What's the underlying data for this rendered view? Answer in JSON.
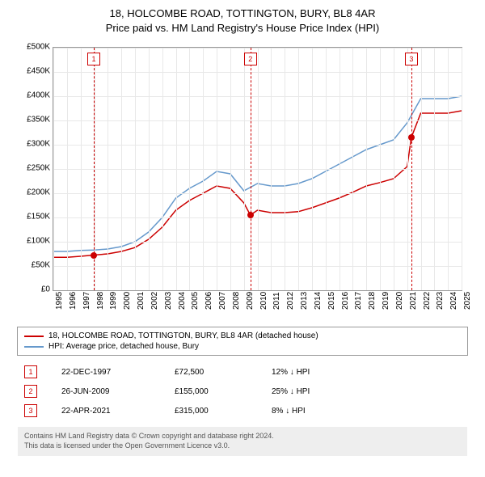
{
  "chart": {
    "title_line1": "18, HOLCOMBE ROAD, TOTTINGTON, BURY, BL8 4AR",
    "title_line2": "Price paid vs. HM Land Registry's House Price Index (HPI)",
    "type": "line",
    "background_color": "#ffffff",
    "grid_color": "#e8e8e8",
    "border_color": "#999999",
    "ylim": [
      0,
      500000
    ],
    "ytick_step": 50000,
    "y_labels": [
      "£0",
      "£50K",
      "£100K",
      "£150K",
      "£200K",
      "£250K",
      "£300K",
      "£350K",
      "£400K",
      "£450K",
      "£500K"
    ],
    "x_years": [
      1995,
      1996,
      1997,
      1998,
      1999,
      2000,
      2001,
      2002,
      2003,
      2004,
      2005,
      2006,
      2007,
      2008,
      2009,
      2010,
      2011,
      2012,
      2013,
      2014,
      2015,
      2016,
      2017,
      2018,
      2019,
      2020,
      2021,
      2022,
      2023,
      2024,
      2025
    ],
    "series": {
      "price_paid": {
        "color": "#cc0000",
        "width": 1.5,
        "label": "18, HOLCOMBE ROAD, TOTTINGTON, BURY, BL8 4AR (detached house)"
      },
      "hpi": {
        "color": "#6699cc",
        "width": 1.5,
        "label": "HPI: Average price, detached house, Bury"
      }
    },
    "markers": [
      {
        "num": "1",
        "year": 1997.97,
        "date": "22-DEC-1997",
        "price": "£72,500",
        "delta": "12% ↓ HPI",
        "y": 72500
      },
      {
        "num": "2",
        "year": 2009.48,
        "date": "26-JUN-2009",
        "price": "£155,000",
        "delta": "25% ↓ HPI",
        "y": 155000
      },
      {
        "num": "3",
        "year": 2021.31,
        "date": "22-APR-2021",
        "price": "£315,000",
        "delta": "8% ↓ HPI",
        "y": 315000
      }
    ],
    "title_fontsize": 13,
    "label_fontsize": 10
  },
  "footer": {
    "line1": "Contains HM Land Registry data © Crown copyright and database right 2024.",
    "line2": "This data is licensed under the Open Government Licence v3.0."
  }
}
